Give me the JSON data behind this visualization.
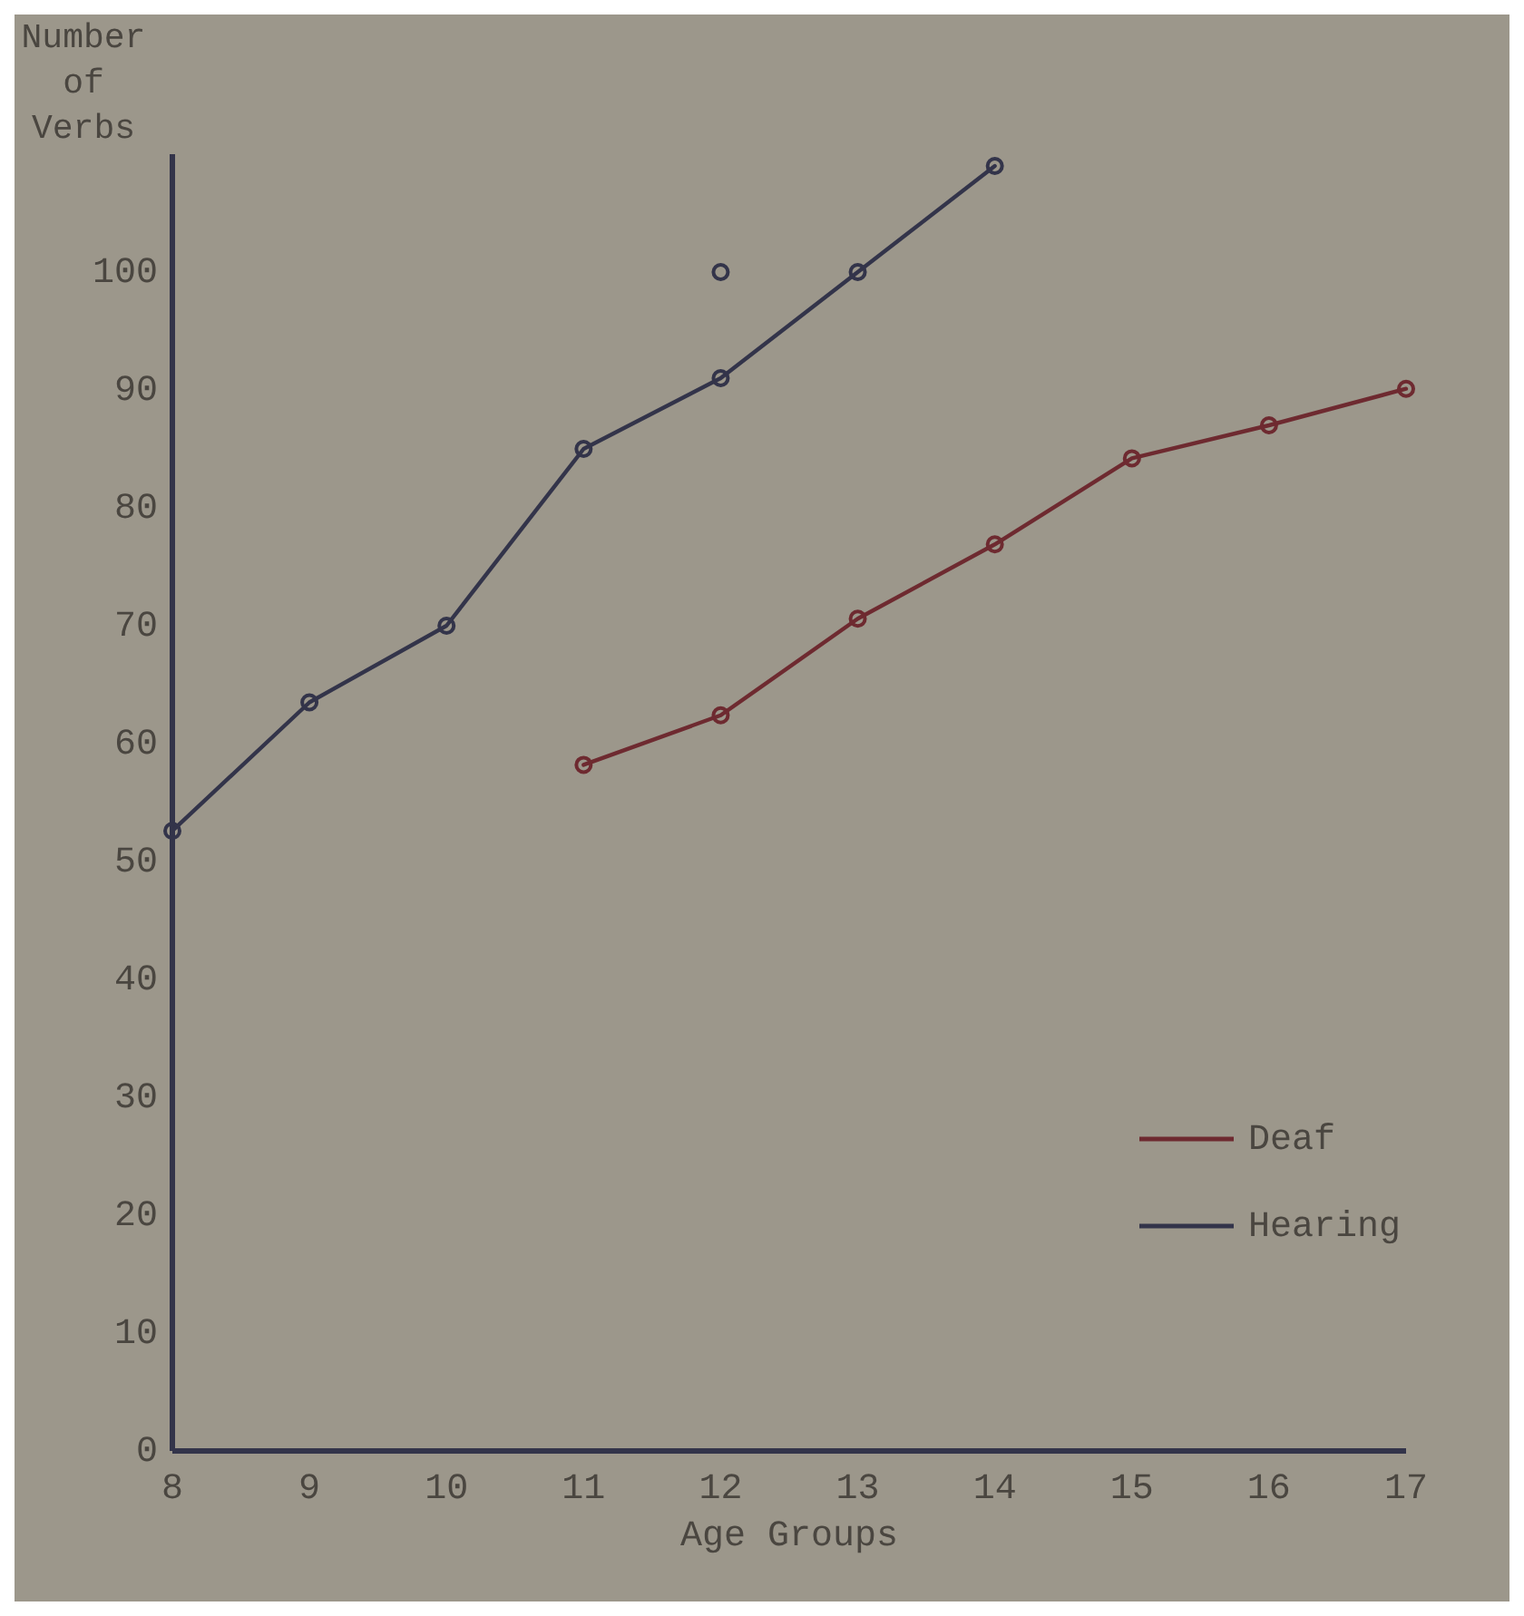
{
  "chart_data": {
    "type": "line",
    "xlabel": "Age Groups",
    "ylabel": "Number of Verbs",
    "x": [
      8,
      9,
      10,
      11,
      12,
      13,
      14,
      15,
      16,
      17
    ],
    "series": [
      {
        "name": "Deaf",
        "color": "#6e2a30",
        "values": [
          null,
          null,
          null,
          58.2,
          62.4,
          70.6,
          76.9,
          84.2,
          87,
          90.1
        ]
      },
      {
        "name": "Hearing",
        "color": "#33344a",
        "values": [
          52.6,
          63.5,
          70,
          85,
          91,
          100,
          109,
          null,
          null,
          null
        ]
      },
      {
        "type": "scatter",
        "color": "#33344a",
        "x": [
          12
        ],
        "values": [
          100
        ]
      }
    ],
    "xlim": [
      8,
      17
    ],
    "xticks": [
      8,
      9,
      10,
      11,
      12,
      13,
      14,
      15,
      16,
      17
    ],
    "ylim": [
      0,
      110
    ],
    "yticks": [
      0,
      10,
      20,
      30,
      40,
      50,
      60,
      70,
      80,
      90,
      100
    ],
    "grid": false,
    "legend": "bottom right",
    "marker": "circle",
    "line_style": "solid"
  }
}
